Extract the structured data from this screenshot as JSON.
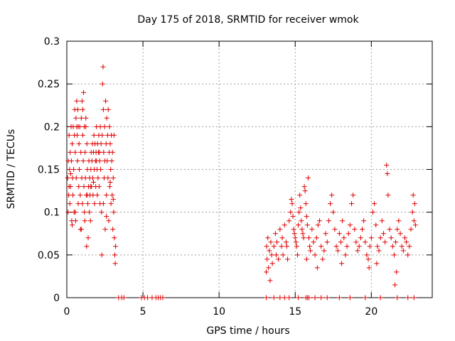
{
  "chart_data": {
    "type": "scatter",
    "title": "Day 175 of 2018, SRMTID for receiver wmok",
    "xlabel": "GPS time / hours",
    "ylabel": "SRMTID / TECUs",
    "xlim": [
      0,
      24
    ],
    "ylim": [
      0,
      0.3
    ],
    "xticks": [
      0,
      5,
      10,
      15,
      20
    ],
    "xtick_labels": [
      "0",
      "5",
      "10",
      "15",
      "20"
    ],
    "yticks": [
      0,
      0.05,
      0.1,
      0.15,
      0.2,
      0.25,
      0.3
    ],
    "ytick_labels": [
      "0",
      "0.05",
      "0.1",
      "0.15",
      "0.2",
      "0.25",
      "0.3"
    ],
    "grid": true,
    "marker": "+",
    "series": [
      {
        "name": "SRMTID",
        "color": "#e00000",
        "points": [
          [
            0.05,
            0.14
          ],
          [
            0.1,
            0.16
          ],
          [
            0.12,
            0.12
          ],
          [
            0.15,
            0.19
          ],
          [
            0.18,
            0.15
          ],
          [
            0.2,
            0.11
          ],
          [
            0.22,
            0.17
          ],
          [
            0.25,
            0.13
          ],
          [
            0.28,
            0.2
          ],
          [
            0.3,
            0.16
          ],
          [
            0.32,
            0.09
          ],
          [
            0.35,
            0.18
          ],
          [
            0.38,
            0.14
          ],
          [
            0.4,
            0.12
          ],
          [
            0.42,
            0.2
          ],
          [
            0.45,
            0.15
          ],
          [
            0.48,
            0.1
          ],
          [
            0.5,
            0.19
          ],
          [
            0.52,
            0.22
          ],
          [
            0.55,
            0.17
          ],
          [
            0.58,
            0.09
          ],
          [
            0.6,
            0.21
          ],
          [
            0.62,
            0.14
          ],
          [
            0.65,
            0.23
          ],
          [
            0.68,
            0.19
          ],
          [
            0.7,
            0.16
          ],
          [
            0.72,
            0.22
          ],
          [
            0.75,
            0.2
          ],
          [
            0.78,
            0.13
          ],
          [
            0.8,
            0.18
          ],
          [
            0.82,
            0.15
          ],
          [
            0.85,
            0.2
          ],
          [
            0.88,
            0.12
          ],
          [
            0.9,
            0.08
          ],
          [
            0.92,
            0.17
          ],
          [
            0.95,
            0.21
          ],
          [
            0.98,
            0.14
          ],
          [
            1.0,
            0.23
          ],
          [
            1.02,
            0.11
          ],
          [
            1.05,
            0.19
          ],
          [
            1.08,
            0.16
          ],
          [
            1.1,
            0.24
          ],
          [
            1.12,
            0.13
          ],
          [
            1.15,
            0.2
          ],
          [
            1.18,
            0.09
          ],
          [
            1.2,
            0.17
          ],
          [
            1.22,
            0.14
          ],
          [
            1.25,
            0.21
          ],
          [
            1.28,
            0.12
          ],
          [
            1.3,
            0.06
          ],
          [
            1.32,
            0.18
          ],
          [
            1.35,
            0.15
          ],
          [
            1.38,
            0.11
          ],
          [
            1.4,
            0.07
          ],
          [
            1.42,
            0.13
          ],
          [
            1.45,
            0.16
          ],
          [
            1.48,
            0.1
          ],
          [
            1.5,
            0.14
          ],
          [
            1.52,
            0.12
          ],
          [
            1.55,
            0.09
          ],
          [
            1.58,
            0.15
          ],
          [
            1.6,
            0.17
          ],
          [
            1.62,
            0.13
          ],
          [
            1.65,
            0.16
          ],
          [
            1.68,
            0.18
          ],
          [
            1.7,
            0.14
          ],
          [
            1.72,
            0.12
          ],
          [
            1.75,
            0.17
          ],
          [
            1.78,
            0.19
          ],
          [
            1.8,
            0.15
          ],
          [
            1.82,
            0.11
          ],
          [
            1.85,
            0.18
          ],
          [
            1.88,
            0.16
          ],
          [
            1.9,
            0.13
          ],
          [
            1.92,
            0.17
          ],
          [
            1.95,
            0.2
          ],
          [
            1.98,
            0.15
          ],
          [
            2.0,
            0.12
          ],
          [
            2.02,
            0.18
          ],
          [
            2.05,
            0.14
          ],
          [
            2.08,
            0.17
          ],
          [
            2.1,
            0.19
          ],
          [
            2.12,
            0.13
          ],
          [
            2.15,
            0.16
          ],
          [
            2.18,
            0.11
          ],
          [
            2.2,
            0.2
          ],
          [
            2.22,
            0.15
          ],
          [
            2.25,
            0.18
          ],
          [
            2.28,
            0.1
          ],
          [
            2.3,
            0.05
          ],
          [
            2.32,
            0.19
          ],
          [
            2.35,
            0.25
          ],
          [
            2.38,
            0.27
          ],
          [
            2.4,
            0.22
          ],
          [
            2.42,
            0.17
          ],
          [
            2.45,
            0.14
          ],
          [
            2.48,
            0.2
          ],
          [
            2.5,
            0.16
          ],
          [
            2.52,
            0.08
          ],
          [
            2.55,
            0.23
          ],
          [
            2.58,
            0.18
          ],
          [
            2.6,
            0.12
          ],
          [
            2.62,
            0.21
          ],
          [
            2.65,
            0.16
          ],
          [
            2.68,
            0.19
          ],
          [
            2.7,
            0.14
          ],
          [
            2.72,
            0.22
          ],
          [
            2.75,
            0.09
          ],
          [
            2.78,
            0.17
          ],
          [
            2.8,
            0.2
          ],
          [
            2.82,
            0.13
          ],
          [
            2.85,
            0.18
          ],
          [
            2.88,
            0.15
          ],
          [
            2.9,
            0.11
          ],
          [
            2.92,
            0.19
          ],
          [
            2.95,
            0.16
          ],
          [
            2.98,
            0.12
          ],
          [
            3.0,
            0.17
          ],
          [
            3.02,
            0.08
          ],
          [
            3.05,
            0.14
          ],
          [
            3.08,
            0.1
          ],
          [
            3.1,
            0.19
          ],
          [
            3.12,
            0.07
          ],
          [
            3.15,
            0.05
          ],
          [
            3.18,
            0.04
          ],
          [
            3.2,
            0.06
          ],
          [
            0.08,
            0.1
          ],
          [
            0.15,
            0.13
          ],
          [
            0.35,
            0.085
          ],
          [
            0.55,
            0.1
          ],
          [
            0.75,
            0.11
          ],
          [
            0.95,
            0.08
          ],
          [
            1.15,
            0.1
          ],
          [
            1.35,
            0.12
          ],
          [
            1.55,
            0.13
          ],
          [
            1.75,
            0.135
          ],
          [
            1.95,
            0.16
          ],
          [
            2.15,
            0.17
          ],
          [
            2.4,
            0.11
          ],
          [
            2.6,
            0.095
          ],
          [
            2.85,
            0.135
          ],
          [
            3.05,
            0.115
          ],
          [
            0.25,
            0.145
          ],
          [
            0.65,
            0.2
          ],
          [
            1.05,
            0.22
          ],
          [
            1.25,
            0.2
          ],
          [
            3.4,
            0
          ],
          [
            3.6,
            0
          ],
          [
            3.75,
            0
          ],
          [
            4.9,
            0
          ],
          [
            5.1,
            0
          ],
          [
            5.3,
            0
          ],
          [
            5.6,
            0
          ],
          [
            5.85,
            0
          ],
          [
            6.0,
            0
          ],
          [
            6.15,
            0
          ],
          [
            6.3,
            0
          ],
          [
            13.1,
            0.03
          ],
          [
            13.12,
            0.06
          ],
          [
            13.15,
            0.045
          ],
          [
            13.2,
            0.07
          ],
          [
            13.25,
            0.035
          ],
          [
            13.3,
            0.055
          ],
          [
            13.35,
            0.02
          ],
          [
            13.4,
            0.065
          ],
          [
            13.45,
            0.05
          ],
          [
            13.5,
            0.04
          ],
          [
            13.6,
            0.06
          ],
          [
            13.7,
            0.075
          ],
          [
            13.75,
            0.05
          ],
          [
            13.8,
            0.065
          ],
          [
            13.9,
            0.045
          ],
          [
            14.0,
            0.08
          ],
          [
            14.1,
            0.06
          ],
          [
            14.15,
            0.07
          ],
          [
            14.2,
            0.05
          ],
          [
            14.3,
            0.085
          ],
          [
            14.4,
            0.065
          ],
          [
            14.45,
            0.06
          ],
          [
            14.5,
            0.045
          ],
          [
            14.6,
            0.09
          ],
          [
            14.7,
            0.1
          ],
          [
            14.75,
            0.115
          ],
          [
            14.8,
            0.11
          ],
          [
            14.85,
            0.095
          ],
          [
            14.9,
            0.08
          ],
          [
            14.95,
            0.075
          ],
          [
            15.0,
            0.07
          ],
          [
            15.05,
            0.065
          ],
          [
            15.1,
            0.06
          ],
          [
            15.15,
            0.05
          ],
          [
            15.2,
            0.085
          ],
          [
            15.25,
            0.1
          ],
          [
            15.3,
            0.12
          ],
          [
            15.35,
            0.105
          ],
          [
            15.4,
            0.09
          ],
          [
            15.45,
            0.08
          ],
          [
            15.5,
            0.075
          ],
          [
            15.55,
            0.07
          ],
          [
            15.6,
            0.13
          ],
          [
            15.65,
            0.125
          ],
          [
            15.7,
            0.11
          ],
          [
            15.75,
            0.095
          ],
          [
            15.8,
            0.085
          ],
          [
            15.85,
            0.14
          ],
          [
            15.9,
            0.07
          ],
          [
            15.95,
            0.06
          ],
          [
            16.0,
            0.055
          ],
          [
            16.1,
            0.08
          ],
          [
            16.2,
            0.065
          ],
          [
            16.3,
            0.05
          ],
          [
            16.4,
            0.07
          ],
          [
            16.5,
            0.085
          ],
          [
            16.6,
            0.09
          ],
          [
            16.7,
            0.06
          ],
          [
            16.8,
            0.045
          ],
          [
            16.9,
            0.055
          ],
          [
            17.0,
            0.075
          ],
          [
            17.1,
            0.065
          ],
          [
            17.2,
            0.09
          ],
          [
            17.3,
            0.11
          ],
          [
            17.4,
            0.12
          ],
          [
            17.5,
            0.1
          ],
          [
            17.6,
            0.08
          ],
          [
            17.7,
            0.06
          ],
          [
            17.8,
            0.055
          ],
          [
            17.9,
            0.075
          ],
          [
            18.0,
            0.065
          ],
          [
            18.1,
            0.09
          ],
          [
            18.2,
            0.07
          ],
          [
            18.3,
            0.05
          ],
          [
            18.4,
            0.06
          ],
          [
            18.5,
            0.075
          ],
          [
            18.6,
            0.085
          ],
          [
            18.7,
            0.11
          ],
          [
            18.8,
            0.12
          ],
          [
            18.9,
            0.08
          ],
          [
            19.0,
            0.065
          ],
          [
            19.1,
            0.055
          ],
          [
            19.2,
            0.06
          ],
          [
            19.3,
            0.07
          ],
          [
            19.4,
            0.08
          ],
          [
            19.5,
            0.09
          ],
          [
            19.6,
            0.065
          ],
          [
            19.7,
            0.05
          ],
          [
            19.8,
            0.045
          ],
          [
            19.9,
            0.06
          ],
          [
            20.0,
            0.07
          ],
          [
            20.1,
            0.1
          ],
          [
            20.2,
            0.11
          ],
          [
            20.3,
            0.085
          ],
          [
            20.4,
            0.06
          ],
          [
            20.5,
            0.055
          ],
          [
            20.6,
            0.07
          ],
          [
            20.7,
            0.09
          ],
          [
            20.8,
            0.075
          ],
          [
            20.9,
            0.065
          ],
          [
            21.0,
            0.155
          ],
          [
            21.05,
            0.145
          ],
          [
            21.1,
            0.12
          ],
          [
            21.2,
            0.08
          ],
          [
            21.3,
            0.07
          ],
          [
            21.4,
            0.06
          ],
          [
            21.5,
            0.05
          ],
          [
            21.6,
            0.065
          ],
          [
            21.7,
            0.08
          ],
          [
            21.8,
            0.09
          ],
          [
            21.9,
            0.075
          ],
          [
            22.0,
            0.06
          ],
          [
            22.1,
            0.055
          ],
          [
            22.2,
            0.07
          ],
          [
            22.3,
            0.065
          ],
          [
            22.4,
            0.05
          ],
          [
            22.5,
            0.06
          ],
          [
            22.6,
            0.08
          ],
          [
            22.7,
            0.1
          ],
          [
            22.75,
            0.12
          ],
          [
            22.8,
            0.09
          ],
          [
            22.85,
            0.11
          ],
          [
            22.9,
            0.085
          ],
          [
            21.55,
            0.015
          ],
          [
            21.65,
            0.03
          ],
          [
            16.45,
            0.035
          ],
          [
            18.05,
            0.04
          ],
          [
            19.85,
            0.035
          ],
          [
            20.35,
            0.04
          ],
          [
            15.75,
            0.045
          ],
          [
            13.1,
            0
          ],
          [
            13.6,
            0
          ],
          [
            14.0,
            0
          ],
          [
            14.3,
            0
          ],
          [
            14.6,
            0
          ],
          [
            15.2,
            0
          ],
          [
            15.7,
            0
          ],
          [
            15.8,
            0
          ],
          [
            15.9,
            0
          ],
          [
            16.3,
            0
          ],
          [
            16.7,
            0
          ],
          [
            17.1,
            0
          ],
          [
            17.9,
            0
          ],
          [
            18.6,
            0
          ],
          [
            19.6,
            0
          ],
          [
            20.6,
            0
          ],
          [
            21.7,
            0
          ],
          [
            22.4,
            0
          ],
          [
            22.8,
            0
          ]
        ]
      }
    ]
  }
}
